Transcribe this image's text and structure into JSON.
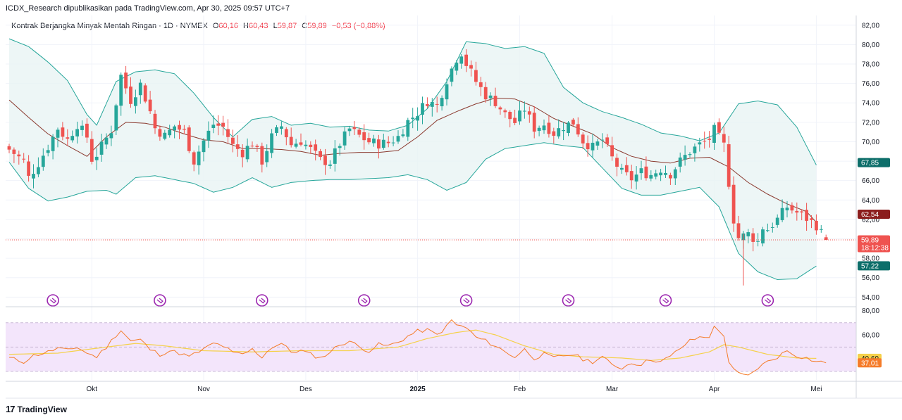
{
  "header": {
    "published": "ICDX_Research dipublikasikan pada TradingView.com, Apr 30, 2025 09:57 UTC+7",
    "symbol_title": "Kontrak Berjangka Minyak Mentah Ringan · 1D · NYMEX",
    "open_label": "O",
    "open": "60,16",
    "high_label": "H",
    "high": "60,43",
    "low_label": "L",
    "low": "59,87",
    "close_label": "C",
    "close": "59,89",
    "change": "−0,53 (−0,88%)"
  },
  "footer": {
    "logo_mark": "17",
    "logo_text": "TradingView"
  },
  "colors": {
    "up": "#26a69a",
    "down": "#ef5350",
    "band": "#26a69a",
    "band_fill": "#e8f4f4",
    "basis": "#8b3a2f",
    "rsi": "#f57c2a",
    "rsi_ma": "#f5d14a",
    "rsi_fill": "#f3e5fb",
    "events": "#9c27b0"
  },
  "chart_data": [
    {
      "type": "candlestick",
      "title": "Kontrak Berjangka Minyak Mentah Ringan · 1D · NYMEX",
      "y_ticks": [
        "82,00",
        "80,00",
        "78,00",
        "76,00",
        "74,00",
        "72,00",
        "70,00",
        "68,00",
        "66,00",
        "64,00",
        "62,00",
        "60,00",
        "58,00",
        "56,00",
        "54,00"
      ],
      "ylim": [
        53.3,
        83.0
      ],
      "x_ticks": [
        "Okt",
        "Nov",
        "Des",
        "2025",
        "Feb",
        "Mar",
        "Apr",
        "Mei"
      ],
      "x_tick_index": [
        17,
        40,
        61,
        84,
        105,
        124,
        145,
        166
      ],
      "n_days": 168,
      "ohlc_anchors_close": [
        [
          0,
          69.2
        ],
        [
          3,
          68.0
        ],
        [
          4,
          66.3
        ],
        [
          6,
          67.8
        ],
        [
          8,
          69.5
        ],
        [
          10,
          71.4
        ],
        [
          12,
          70.2
        ],
        [
          14,
          71.8
        ],
        [
          16,
          70.5
        ],
        [
          17,
          68.2
        ],
        [
          18,
          68.7
        ],
        [
          21,
          71.2
        ],
        [
          23,
          76.8
        ],
        [
          25,
          74.3
        ],
        [
          27,
          75.9
        ],
        [
          29,
          73.1
        ],
        [
          30,
          71.4
        ],
        [
          32,
          70.6
        ],
        [
          34,
          71.6
        ],
        [
          36,
          71.0
        ],
        [
          38,
          68.0
        ],
        [
          40,
          70.1
        ],
        [
          42,
          71.8
        ],
        [
          44,
          71.5
        ],
        [
          46,
          69.6
        ],
        [
          48,
          68.9
        ],
        [
          50,
          69.9
        ],
        [
          52,
          68.0
        ],
        [
          54,
          70.5
        ],
        [
          56,
          71.6
        ],
        [
          58,
          69.7
        ],
        [
          60,
          70.1
        ],
        [
          62,
          69.2
        ],
        [
          64,
          68.1
        ],
        [
          66,
          67.9
        ],
        [
          68,
          69.8
        ],
        [
          70,
          71.3
        ],
        [
          72,
          70.6
        ],
        [
          74,
          70.0
        ],
        [
          76,
          69.8
        ],
        [
          78,
          69.9
        ],
        [
          80,
          70.5
        ],
        [
          82,
          72.1
        ],
        [
          84,
          73.0
        ],
        [
          86,
          74.2
        ],
        [
          88,
          73.7
        ],
        [
          90,
          76.4
        ],
        [
          92,
          78.6
        ],
        [
          93,
          79.2
        ],
        [
          94,
          78.0
        ],
        [
          96,
          76.2
        ],
        [
          98,
          74.8
        ],
        [
          100,
          74.1
        ],
        [
          102,
          72.8
        ],
        [
          104,
          72.0
        ],
        [
          106,
          73.4
        ],
        [
          108,
          71.4
        ],
        [
          110,
          71.8
        ],
        [
          112,
          70.9
        ],
        [
          114,
          71.6
        ],
        [
          116,
          72.0
        ],
        [
          118,
          70.1
        ],
        [
          120,
          69.4
        ],
        [
          122,
          70.2
        ],
        [
          124,
          68.3
        ],
        [
          126,
          66.8
        ],
        [
          128,
          66.2
        ],
        [
          130,
          66.9
        ],
        [
          132,
          66.6
        ],
        [
          134,
          67.2
        ],
        [
          136,
          66.7
        ],
        [
          138,
          68.0
        ],
        [
          140,
          69.0
        ],
        [
          142,
          69.7
        ],
        [
          144,
          70.3
        ],
        [
          145,
          71.2
        ],
        [
          147,
          69.6
        ],
        [
          148,
          65.8
        ],
        [
          149,
          62.0
        ],
        [
          150,
          60.1
        ],
        [
          152,
          60.5
        ],
        [
          154,
          59.7
        ],
        [
          155,
          61.2
        ],
        [
          156,
          61.0
        ],
        [
          158,
          62.0
        ],
        [
          160,
          63.3
        ],
        [
          162,
          62.7
        ],
        [
          164,
          62.1
        ],
        [
          166,
          61.4
        ],
        [
          167,
          60.6
        ],
        [
          168,
          59.89
        ]
      ],
      "bollinger_upper_anchors": [
        [
          0,
          80.6
        ],
        [
          4,
          79.8
        ],
        [
          8,
          78.2
        ],
        [
          12,
          76.3
        ],
        [
          16,
          72.8
        ],
        [
          18,
          71.7
        ],
        [
          22,
          76.2
        ],
        [
          26,
          77.2
        ],
        [
          30,
          77.4
        ],
        [
          34,
          77.0
        ],
        [
          38,
          75.0
        ],
        [
          42,
          72.5
        ],
        [
          46,
          70.5
        ],
        [
          50,
          72.3
        ],
        [
          54,
          72.6
        ],
        [
          58,
          71.7
        ],
        [
          62,
          71.9
        ],
        [
          66,
          71.5
        ],
        [
          70,
          71.6
        ],
        [
          74,
          71.2
        ],
        [
          78,
          71.1
        ],
        [
          82,
          71.7
        ],
        [
          86,
          73.4
        ],
        [
          90,
          76.2
        ],
        [
          94,
          80.3
        ],
        [
          98,
          80.1
        ],
        [
          102,
          79.6
        ],
        [
          106,
          79.8
        ],
        [
          110,
          79.1
        ],
        [
          114,
          75.6
        ],
        [
          118,
          74.0
        ],
        [
          122,
          73.1
        ],
        [
          126,
          72.5
        ],
        [
          130,
          71.8
        ],
        [
          134,
          70.9
        ],
        [
          138,
          70.6
        ],
        [
          142,
          70.1
        ],
        [
          146,
          70.9
        ],
        [
          150,
          73.9
        ],
        [
          154,
          74.2
        ],
        [
          158,
          73.8
        ],
        [
          162,
          71.5
        ],
        [
          166,
          67.6
        ]
      ],
      "bollinger_basis_anchors": [
        [
          0,
          74.3
        ],
        [
          4,
          72.5
        ],
        [
          8,
          70.8
        ],
        [
          12,
          69.6
        ],
        [
          16,
          68.5
        ],
        [
          20,
          70.5
        ],
        [
          24,
          72.0
        ],
        [
          28,
          71.9
        ],
        [
          32,
          71.5
        ],
        [
          36,
          70.8
        ],
        [
          40,
          70.2
        ],
        [
          44,
          70.0
        ],
        [
          48,
          69.3
        ],
        [
          52,
          69.3
        ],
        [
          56,
          69.2
        ],
        [
          60,
          69.0
        ],
        [
          64,
          68.6
        ],
        [
          68,
          68.8
        ],
        [
          72,
          68.9
        ],
        [
          76,
          68.9
        ],
        [
          80,
          69.1
        ],
        [
          84,
          70.5
        ],
        [
          88,
          72.2
        ],
        [
          92,
          73.1
        ],
        [
          96,
          73.9
        ],
        [
          100,
          74.5
        ],
        [
          104,
          74.4
        ],
        [
          108,
          73.6
        ],
        [
          112,
          72.4
        ],
        [
          116,
          71.6
        ],
        [
          120,
          70.8
        ],
        [
          124,
          69.4
        ],
        [
          128,
          68.5
        ],
        [
          132,
          68.0
        ],
        [
          136,
          67.8
        ],
        [
          140,
          68.3
        ],
        [
          144,
          68.4
        ],
        [
          148,
          67.4
        ],
        [
          152,
          65.8
        ],
        [
          156,
          64.6
        ],
        [
          160,
          63.6
        ],
        [
          164,
          62.8
        ],
        [
          166,
          61.7
        ]
      ],
      "bollinger_lower_anchors": [
        [
          0,
          67.9
        ],
        [
          4,
          65.2
        ],
        [
          8,
          63.9
        ],
        [
          12,
          64.3
        ],
        [
          16,
          64.9
        ],
        [
          20,
          65.0
        ],
        [
          22,
          64.6
        ],
        [
          26,
          66.3
        ],
        [
          30,
          66.5
        ],
        [
          34,
          66.1
        ],
        [
          38,
          65.7
        ],
        [
          42,
          64.8
        ],
        [
          46,
          65.3
        ],
        [
          50,
          66.3
        ],
        [
          54,
          65.3
        ],
        [
          58,
          65.8
        ],
        [
          62,
          66.0
        ],
        [
          66,
          66.1
        ],
        [
          70,
          66.1
        ],
        [
          74,
          66.2
        ],
        [
          78,
          66.3
        ],
        [
          82,
          66.6
        ],
        [
          86,
          66.1
        ],
        [
          90,
          65.0
        ],
        [
          94,
          65.8
        ],
        [
          98,
          68.2
        ],
        [
          102,
          69.3
        ],
        [
          106,
          69.6
        ],
        [
          110,
          69.9
        ],
        [
          114,
          69.6
        ],
        [
          118,
          69.4
        ],
        [
          122,
          67.3
        ],
        [
          126,
          65.2
        ],
        [
          130,
          64.5
        ],
        [
          134,
          64.5
        ],
        [
          138,
          64.9
        ],
        [
          142,
          65.3
        ],
        [
          146,
          63.3
        ],
        [
          150,
          58.5
        ],
        [
          154,
          56.6
        ],
        [
          158,
          55.8
        ],
        [
          162,
          55.9
        ],
        [
          166,
          57.2
        ]
      ],
      "price_badges": [
        {
          "label": "67,85",
          "value": 67.85,
          "color": "#0d6e6a"
        },
        {
          "label": "62,54",
          "value": 62.54,
          "color": "#8b1d1d"
        },
        {
          "label": "59,89",
          "value": 59.89,
          "color": "#ef5350"
        },
        {
          "label": "57,22",
          "value": 57.22,
          "color": "#0d6e6a"
        }
      ],
      "countdown": "18:12:38",
      "event_markers_index": [
        9,
        31,
        52,
        73,
        94,
        115,
        135,
        156
      ]
    },
    {
      "type": "line",
      "y_ticks": [
        "80,00",
        "60,00",
        "40,00"
      ],
      "ylim": [
        23,
        82
      ],
      "band": [
        30,
        70
      ],
      "midline": 50,
      "rsi_anchors": [
        [
          0,
          41
        ],
        [
          3,
          38
        ],
        [
          5,
          43
        ],
        [
          8,
          46
        ],
        [
          10,
          49
        ],
        [
          12,
          47
        ],
        [
          14,
          50
        ],
        [
          16,
          45
        ],
        [
          18,
          42
        ],
        [
          20,
          50
        ],
        [
          22,
          60
        ],
        [
          23,
          64
        ],
        [
          25,
          55
        ],
        [
          27,
          56
        ],
        [
          29,
          48
        ],
        [
          31,
          44
        ],
        [
          33,
          47
        ],
        [
          35,
          45
        ],
        [
          37,
          42
        ],
        [
          40,
          48
        ],
        [
          42,
          53
        ],
        [
          44,
          51
        ],
        [
          46,
          45
        ],
        [
          48,
          44
        ],
        [
          50,
          48
        ],
        [
          52,
          42
        ],
        [
          54,
          50
        ],
        [
          56,
          53
        ],
        [
          58,
          46
        ],
        [
          60,
          47
        ],
        [
          62,
          44
        ],
        [
          64,
          41
        ],
        [
          66,
          46
        ],
        [
          68,
          52
        ],
        [
          70,
          55
        ],
        [
          72,
          50
        ],
        [
          74,
          47
        ],
        [
          76,
          52
        ],
        [
          78,
          51
        ],
        [
          80,
          54
        ],
        [
          82,
          59
        ],
        [
          84,
          63
        ],
        [
          86,
          64
        ],
        [
          88,
          60
        ],
        [
          90,
          67
        ],
        [
          91,
          72
        ],
        [
          92,
          68
        ],
        [
          94,
          66
        ],
        [
          96,
          58
        ],
        [
          98,
          55
        ],
        [
          100,
          51
        ],
        [
          102,
          46
        ],
        [
          104,
          42
        ],
        [
          106,
          48
        ],
        [
          108,
          41
        ],
        [
          110,
          44
        ],
        [
          112,
          41
        ],
        [
          114,
          43
        ],
        [
          116,
          44
        ],
        [
          118,
          40
        ],
        [
          120,
          38
        ],
        [
          122,
          42
        ],
        [
          124,
          35
        ],
        [
          126,
          33
        ],
        [
          128,
          37
        ],
        [
          130,
          36
        ],
        [
          132,
          40
        ],
        [
          134,
          38
        ],
        [
          136,
          42
        ],
        [
          138,
          49
        ],
        [
          140,
          55
        ],
        [
          142,
          58
        ],
        [
          144,
          59
        ],
        [
          145,
          66
        ],
        [
          147,
          60
        ],
        [
          148,
          38
        ],
        [
          149,
          31
        ],
        [
          150,
          28
        ],
        [
          152,
          26
        ],
        [
          154,
          33
        ],
        [
          156,
          38
        ],
        [
          158,
          42
        ],
        [
          160,
          47
        ],
        [
          162,
          43
        ],
        [
          164,
          41
        ],
        [
          166,
          38
        ],
        [
          168,
          37.01
        ]
      ],
      "rsi_ma_anchors": [
        [
          0,
          44
        ],
        [
          10,
          45
        ],
        [
          20,
          50
        ],
        [
          26,
          53
        ],
        [
          32,
          51
        ],
        [
          40,
          47
        ],
        [
          50,
          46
        ],
        [
          60,
          47
        ],
        [
          70,
          47
        ],
        [
          80,
          50
        ],
        [
          86,
          57
        ],
        [
          92,
          62
        ],
        [
          96,
          64
        ],
        [
          100,
          60
        ],
        [
          106,
          51
        ],
        [
          112,
          44
        ],
        [
          118,
          42
        ],
        [
          126,
          41
        ],
        [
          132,
          39
        ],
        [
          138,
          41
        ],
        [
          144,
          46
        ],
        [
          147,
          52
        ],
        [
          150,
          50
        ],
        [
          156,
          44
        ],
        [
          162,
          41
        ],
        [
          166,
          40.69
        ]
      ],
      "value_badges": [
        {
          "label": "40,69",
          "value": 40.69,
          "color": "#f5d14a",
          "text_color": "#131722"
        },
        {
          "label": "37,01",
          "value": 37.01,
          "color": "#f57c2a",
          "text_color": "#ffffff"
        }
      ]
    }
  ]
}
